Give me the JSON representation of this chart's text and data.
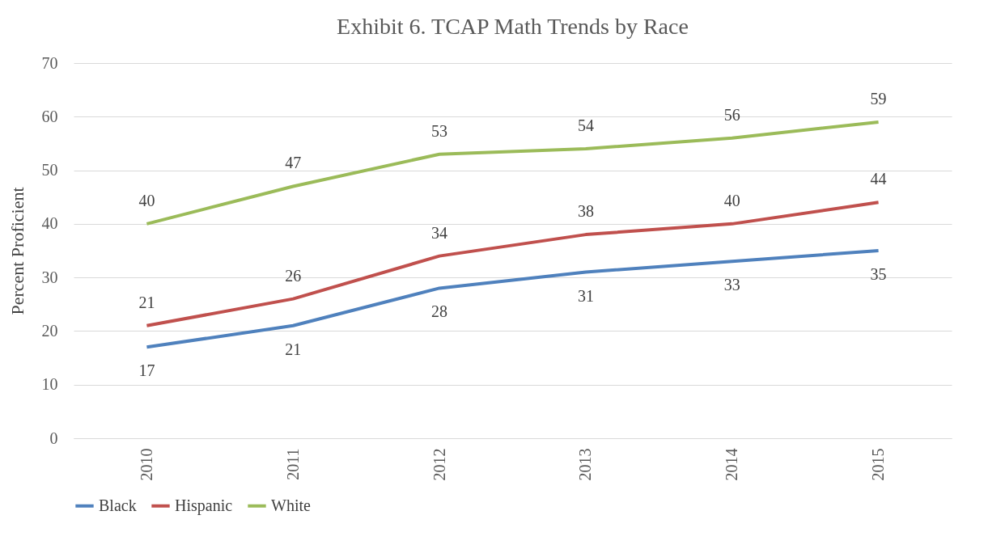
{
  "chart_data": {
    "type": "line",
    "title": "Exhibit 6. TCAP Math Trends by Race",
    "ylabel": "Percent Proficient",
    "categories": [
      "2010",
      "2011",
      "2012",
      "2013",
      "2014",
      "2015"
    ],
    "series": [
      {
        "name": "Black",
        "color": "#4f81bd",
        "values": [
          17,
          21,
          28,
          31,
          33,
          35
        ]
      },
      {
        "name": "Hispanic",
        "color": "#c0504d",
        "values": [
          21,
          26,
          34,
          38,
          40,
          44
        ]
      },
      {
        "name": "White",
        "color": "#9bbb59",
        "values": [
          40,
          47,
          53,
          54,
          56,
          59
        ]
      }
    ],
    "ylim": [
      0,
      70
    ],
    "yticks": [
      0,
      10,
      20,
      30,
      40,
      50,
      60,
      70
    ],
    "grid": "y",
    "legend": "bottom",
    "data_labels": true,
    "marker": "none",
    "line_style": "solid"
  }
}
